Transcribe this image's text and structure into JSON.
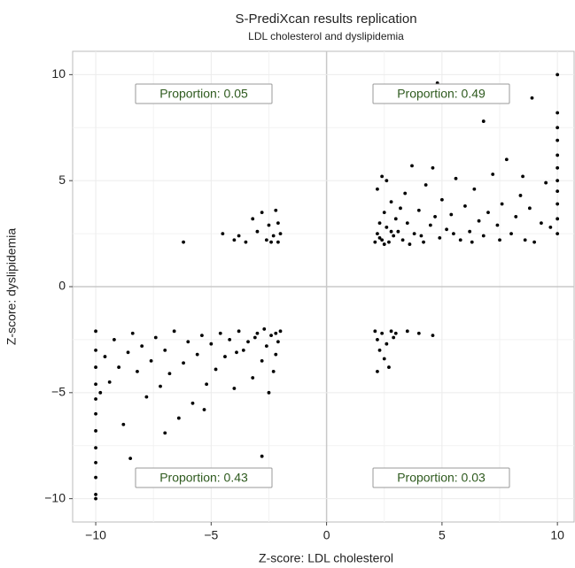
{
  "chart_data": {
    "type": "scatter",
    "title": "S-PrediXcan results replication",
    "subtitle": "LDL cholesterol and dyslipidemia",
    "x_label": "Z-score: LDL cholesterol",
    "y_label": "Z-score: dyslipidemia",
    "annotations": [
      "Proportion: 0.05",
      "Proportion: 0.49",
      "Proportion: 0.43",
      "Proportion: 0.03"
    ],
    "color": "#000000",
    "grid": true,
    "xlim": [
      -11,
      10.8
    ],
    "ylim": [
      -11.1,
      11.1
    ],
    "xticks": [
      {
        "value": -10,
        "label": "−10"
      },
      {
        "value": -5,
        "label": "−5"
      },
      0,
      5,
      10
    ],
    "yticks": [
      {
        "value": -10,
        "label": "−10"
      },
      {
        "value": -5,
        "label": "−5"
      },
      0,
      5,
      10
    ],
    "x": [
      2.1,
      2.2,
      2.3,
      2.4,
      2.5,
      2.6,
      2.7,
      2.8,
      2.9,
      3.0,
      2.2,
      2.4,
      2.6,
      3.1,
      3.3,
      3.4,
      3.5,
      3.7,
      3.8,
      4.0,
      4.2,
      4.3,
      4.5,
      4.7,
      4.9,
      5.0,
      5.2,
      5.4,
      5.6,
      5.8,
      6.0,
      6.2,
      6.4,
      6.6,
      6.8,
      7.0,
      7.2,
      7.4,
      7.6,
      7.8,
      8.0,
      8.2,
      8.4,
      8.6,
      8.8,
      9.0,
      9.3,
      9.5,
      9.7,
      2.3,
      2.5,
      2.8,
      3.2,
      3.6,
      4.1,
      4.6,
      5.5,
      6.3,
      7.5,
      8.5,
      10,
      10,
      10,
      10,
      10,
      10,
      10,
      10,
      10,
      10,
      10,
      4.8,
      8.9,
      6.8,
      -6.2,
      -4.5,
      -4.0,
      -3.8,
      -3.5,
      -3.2,
      -3.0,
      -2.8,
      -2.6,
      -2.5,
      -2.3,
      -2.2,
      -2.1,
      -2.1,
      -2.0,
      -2.4,
      2.1,
      2.2,
      2.3,
      2.4,
      2.5,
      2.6,
      2.8,
      2.9,
      2.2,
      3.0,
      3.5,
      4.0,
      4.6,
      2.7,
      -2.0,
      -2.1,
      -2.2,
      -2.3,
      -2.4,
      -2.5,
      -2.6,
      -2.8,
      -3.0,
      -3.2,
      -3.4,
      -3.6,
      -3.8,
      -4.0,
      -4.2,
      -4.4,
      -4.6,
      -4.8,
      -5.0,
      -5.2,
      -5.4,
      -5.6,
      -5.8,
      -6.0,
      -6.2,
      -6.4,
      -6.6,
      -6.8,
      -7.0,
      -7.2,
      -7.4,
      -7.6,
      -7.8,
      -8.0,
      -8.2,
      -8.4,
      -8.6,
      -8.8,
      -9.0,
      -9.2,
      -9.4,
      -9.6,
      -9.8,
      -2.7,
      -3.1,
      -3.9,
      -5.3,
      -2.2,
      -10,
      -10,
      -10,
      -10,
      -10,
      -10,
      -10,
      -10,
      -10,
      -10,
      -10,
      -10,
      -2.8,
      -8.5,
      -7.0
    ],
    "values": [
      2.1,
      2.5,
      3.0,
      2.2,
      3.5,
      2.8,
      2.1,
      4.0,
      2.4,
      3.2,
      4.6,
      5.2,
      5.0,
      2.6,
      2.2,
      4.4,
      3.0,
      5.7,
      2.5,
      3.6,
      2.1,
      4.8,
      2.9,
      3.3,
      2.3,
      4.1,
      2.7,
      3.4,
      5.1,
      2.2,
      3.8,
      2.6,
      4.6,
      3.1,
      2.4,
      3.5,
      5.3,
      2.9,
      3.9,
      6.0,
      2.5,
      3.3,
      4.3,
      2.2,
      3.7,
      2.1,
      3.0,
      4.9,
      2.8,
      2.3,
      2.0,
      2.6,
      3.7,
      2.0,
      2.4,
      5.6,
      2.5,
      2.1,
      2.2,
      5.2,
      2.5,
      3.2,
      3.9,
      4.5,
      5.0,
      5.6,
      6.2,
      6.9,
      7.5,
      8.2,
      10,
      9.6,
      8.9,
      7.8,
      2.1,
      2.5,
      2.2,
      2.4,
      2.1,
      3.2,
      2.6,
      3.5,
      2.2,
      2.9,
      2.4,
      3.6,
      2.1,
      3.0,
      2.5,
      2.1,
      -2.1,
      -2.5,
      -3.0,
      -2.2,
      -3.4,
      -2.7,
      -2.1,
      -2.4,
      -4.0,
      -2.2,
      -2.1,
      -2.2,
      -2.3,
      -3.8,
      -2.1,
      -2.6,
      -3.2,
      -4.0,
      -2.3,
      -5.0,
      -2.8,
      -3.5,
      -2.2,
      -4.3,
      -2.6,
      -3.0,
      -2.1,
      -4.8,
      -2.5,
      -3.3,
      -2.2,
      -3.9,
      -2.7,
      -4.6,
      -2.3,
      -3.2,
      -5.5,
      -2.6,
      -3.6,
      -6.2,
      -2.1,
      -4.1,
      -3.0,
      -4.7,
      -2.4,
      -3.5,
      -5.2,
      -2.8,
      -4.0,
      -2.2,
      -3.1,
      -6.5,
      -3.8,
      -2.5,
      -4.5,
      -3.3,
      -5.0,
      -2.0,
      -2.4,
      -3.1,
      -5.8,
      -2.2,
      -2.1,
      -3.0,
      -3.8,
      -4.6,
      -5.3,
      -6.0,
      -6.8,
      -7.6,
      -8.3,
      -9.0,
      -9.8,
      -10,
      -8.0,
      -8.1,
      -6.9
    ]
  }
}
